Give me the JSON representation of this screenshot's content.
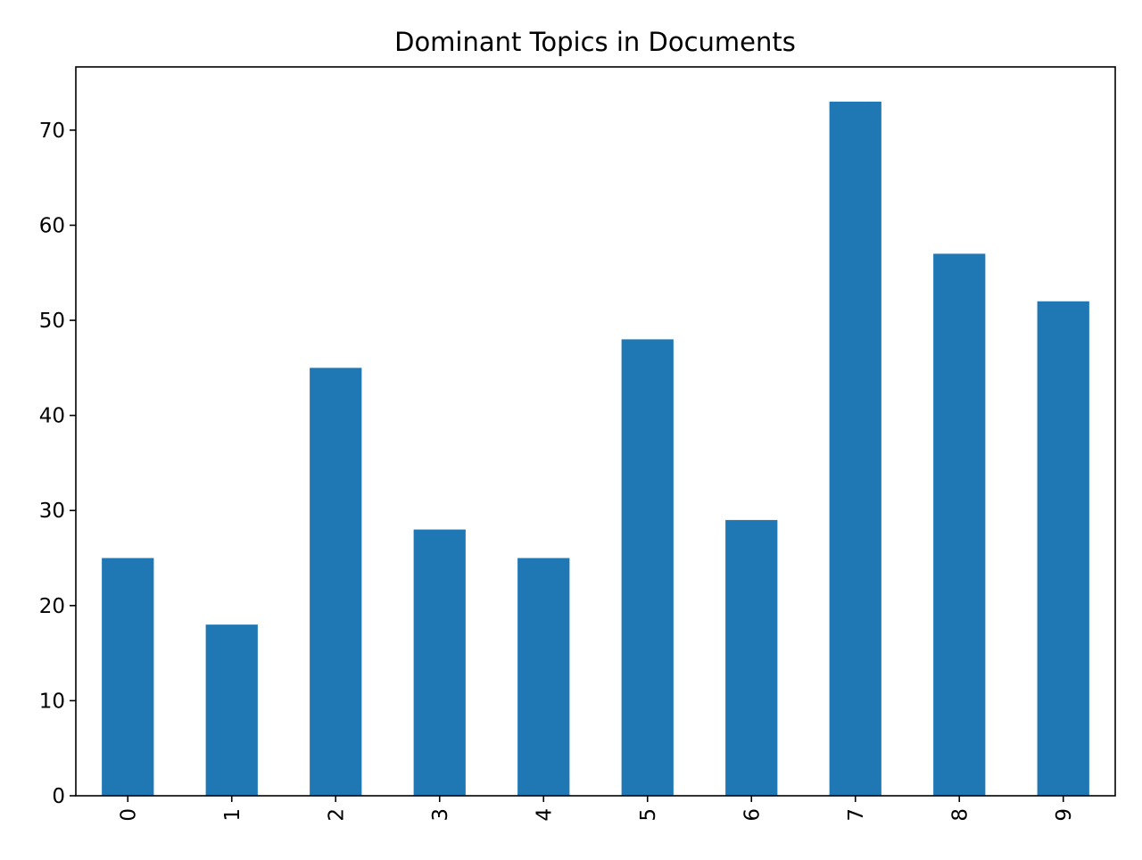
{
  "chart_data": {
    "type": "bar",
    "title": "Dominant Topics in Documents",
    "xlabel": "",
    "ylabel": "",
    "categories": [
      "0",
      "1",
      "2",
      "3",
      "4",
      "5",
      "6",
      "7",
      "8",
      "9"
    ],
    "values": [
      25,
      18,
      45,
      28,
      25,
      48,
      29,
      73,
      57,
      52
    ],
    "ylim": [
      0,
      76.65
    ],
    "yticks": [
      "0",
      "10",
      "20",
      "30",
      "40",
      "50",
      "60",
      "70"
    ],
    "x_tick_rotation": "vertical",
    "grid": false,
    "legend": "none",
    "bar_color": "#1f77b4"
  }
}
